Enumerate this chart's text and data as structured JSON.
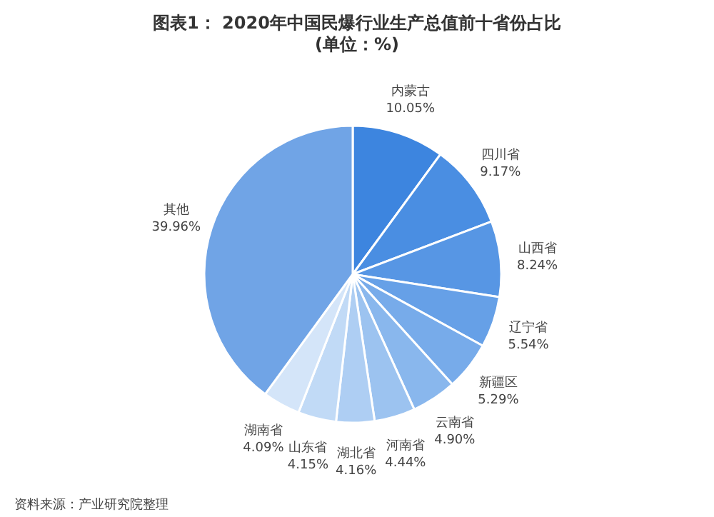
{
  "chart_data": {
    "type": "pie",
    "title": "图表1： 2020年中国民爆行业生产总值前十省份占比",
    "subtitle": "(单位：%)",
    "categories": [
      "内蒙古",
      "四川省",
      "山西省",
      "辽宁省",
      "新疆区",
      "云南省",
      "河南省",
      "湖北省",
      "山东省",
      "湖南省",
      "其他"
    ],
    "values": [
      10.05,
      9.17,
      8.24,
      5.54,
      5.29,
      4.9,
      4.44,
      4.16,
      4.15,
      4.09,
      39.96
    ],
    "colors": [
      "#3d85df",
      "#4a8ee2",
      "#5796e4",
      "#66a0e7",
      "#77abea",
      "#89b7ed",
      "#9cc3f0",
      "#aecef3",
      "#c1daf6",
      "#d4e5f9",
      "#70a4e6"
    ],
    "value_labels": [
      "10.05%",
      "9.17%",
      "8.24%",
      "5.54%",
      "5.29%",
      "4.90%",
      "4.44%",
      "4.16%",
      "4.15%",
      "4.09%",
      "39.96%"
    ],
    "annotations": [
      "资料来源：产业研究院整理"
    ]
  }
}
